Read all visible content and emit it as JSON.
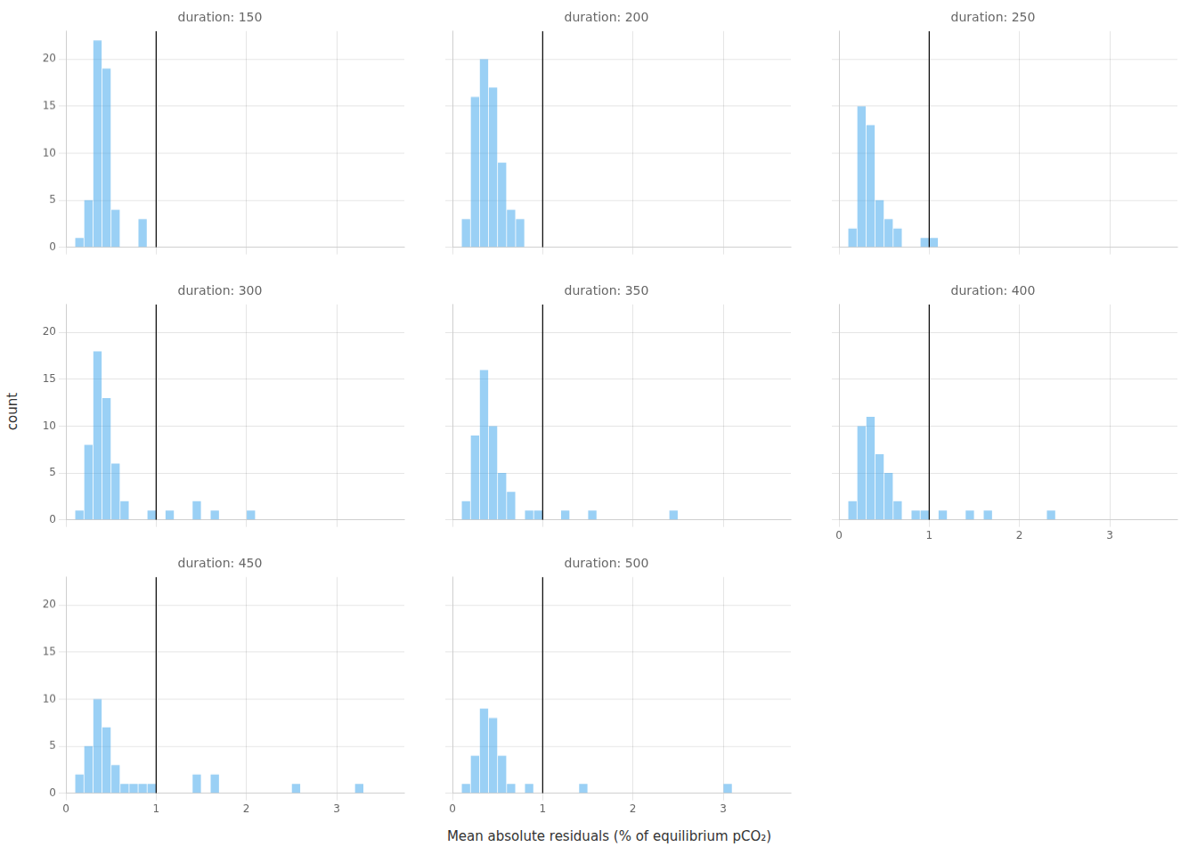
{
  "chart_data": [
    {
      "type": "histogram",
      "title": "duration: 150",
      "bins": [
        0.0,
        0.1,
        0.2,
        0.3,
        0.4,
        0.5,
        0.6,
        0.7,
        0.8,
        0.9,
        1.0,
        1.1,
        1.2,
        1.3,
        1.4,
        1.5,
        1.6,
        1.7,
        1.8,
        1.9,
        2.0,
        2.1,
        2.2,
        2.3,
        2.4,
        2.5,
        2.6,
        2.7,
        2.8,
        2.9,
        3.0,
        3.1,
        3.2,
        3.3,
        3.4,
        3.5,
        3.6
      ],
      "values": [
        0,
        1,
        5,
        22,
        19,
        4,
        0,
        0,
        3,
        0,
        0,
        0,
        0,
        0,
        0,
        0,
        0,
        0,
        0,
        0,
        0,
        0,
        0,
        0,
        0,
        0,
        0,
        0,
        0,
        0,
        0,
        0,
        0,
        0,
        0,
        0
      ],
      "threshold": 1.0,
      "xlim": [
        0,
        3.75
      ],
      "ylim": [
        0,
        23
      ],
      "xticks": [
        0,
        1,
        2,
        3
      ],
      "yticks": [
        0,
        5,
        10,
        15,
        20
      ],
      "grid": true,
      "tick_labels": "y"
    },
    {
      "type": "histogram",
      "title": "duration: 200",
      "bins": [
        0.0,
        0.1,
        0.2,
        0.3,
        0.4,
        0.5,
        0.6,
        0.7,
        0.8,
        0.9,
        1.0,
        1.1,
        1.2,
        1.3,
        1.4,
        1.5,
        1.6,
        1.7,
        1.8,
        1.9,
        2.0,
        2.1,
        2.2,
        2.3,
        2.4,
        2.5,
        2.6,
        2.7,
        2.8,
        2.9,
        3.0,
        3.1,
        3.2,
        3.3,
        3.4,
        3.5,
        3.6
      ],
      "values": [
        0,
        3,
        16,
        20,
        17,
        9,
        4,
        3,
        0,
        0,
        0,
        0,
        0,
        0,
        0,
        0,
        0,
        0,
        0,
        0,
        0,
        0,
        0,
        0,
        0,
        0,
        0,
        0,
        0,
        0,
        0,
        0,
        0,
        0,
        0,
        0
      ],
      "threshold": 1.0,
      "xlim": [
        0,
        3.75
      ],
      "ylim": [
        0,
        23
      ],
      "xticks": [
        0,
        1,
        2,
        3
      ],
      "yticks": [
        0,
        5,
        10,
        15,
        20
      ],
      "grid": true,
      "tick_labels": false
    },
    {
      "type": "histogram",
      "title": "duration: 250",
      "bins": [
        0.0,
        0.1,
        0.2,
        0.3,
        0.4,
        0.5,
        0.6,
        0.7,
        0.8,
        0.9,
        1.0,
        1.1,
        1.2,
        1.3,
        1.4,
        1.5,
        1.6,
        1.7,
        1.8,
        1.9,
        2.0,
        2.1,
        2.2,
        2.3,
        2.4,
        2.5,
        2.6,
        2.7,
        2.8,
        2.9,
        3.0,
        3.1,
        3.2,
        3.3,
        3.4,
        3.5,
        3.6
      ],
      "values": [
        0,
        2,
        15,
        13,
        5,
        3,
        2,
        0,
        0,
        1,
        1,
        0,
        0,
        0,
        0,
        0,
        0,
        0,
        0,
        0,
        0,
        0,
        0,
        0,
        0,
        0,
        0,
        0,
        0,
        0,
        0,
        0,
        0,
        0,
        0,
        0
      ],
      "threshold": 1.0,
      "xlim": [
        0,
        3.75
      ],
      "ylim": [
        0,
        23
      ],
      "xticks": [
        0,
        1,
        2,
        3
      ],
      "yticks": [
        0,
        5,
        10,
        15,
        20
      ],
      "grid": true,
      "tick_labels": false
    },
    {
      "type": "histogram",
      "title": "duration: 300",
      "ylabel": "count",
      "bins": [
        0.0,
        0.1,
        0.2,
        0.3,
        0.4,
        0.5,
        0.6,
        0.7,
        0.8,
        0.9,
        1.0,
        1.1,
        1.2,
        1.3,
        1.4,
        1.5,
        1.6,
        1.7,
        1.8,
        1.9,
        2.0,
        2.1,
        2.2,
        2.3,
        2.4,
        2.5,
        2.6,
        2.7,
        2.8,
        2.9,
        3.0,
        3.1,
        3.2,
        3.3,
        3.4,
        3.5,
        3.6
      ],
      "values": [
        0,
        1,
        8,
        18,
        13,
        6,
        2,
        0,
        0,
        1,
        0,
        1,
        0,
        0,
        2,
        0,
        1,
        0,
        0,
        0,
        1,
        0,
        0,
        0,
        0,
        0,
        0,
        0,
        0,
        0,
        0,
        0,
        0,
        0,
        0,
        0
      ],
      "threshold": 1.0,
      "xlim": [
        0,
        3.75
      ],
      "ylim": [
        0,
        23
      ],
      "xticks": [
        0,
        1,
        2,
        3
      ],
      "yticks": [
        0,
        5,
        10,
        15,
        20
      ],
      "grid": true,
      "tick_labels": "y"
    },
    {
      "type": "histogram",
      "title": "duration: 350",
      "bins": [
        0.0,
        0.1,
        0.2,
        0.3,
        0.4,
        0.5,
        0.6,
        0.7,
        0.8,
        0.9,
        1.0,
        1.1,
        1.2,
        1.3,
        1.4,
        1.5,
        1.6,
        1.7,
        1.8,
        1.9,
        2.0,
        2.1,
        2.2,
        2.3,
        2.4,
        2.5,
        2.6,
        2.7,
        2.8,
        2.9,
        3.0,
        3.1,
        3.2,
        3.3,
        3.4,
        3.5,
        3.6
      ],
      "values": [
        0,
        2,
        9,
        16,
        10,
        5,
        3,
        0,
        1,
        1,
        0,
        0,
        1,
        0,
        0,
        1,
        0,
        0,
        0,
        0,
        0,
        0,
        0,
        0,
        1,
        0,
        0,
        0,
        0,
        0,
        0,
        0,
        0,
        0,
        0,
        0
      ],
      "threshold": 1.0,
      "xlim": [
        0,
        3.75
      ],
      "ylim": [
        0,
        23
      ],
      "xticks": [
        0,
        1,
        2,
        3
      ],
      "yticks": [
        0,
        5,
        10,
        15,
        20
      ],
      "grid": true,
      "tick_labels": false
    },
    {
      "type": "histogram",
      "title": "duration: 400",
      "bins": [
        0.0,
        0.1,
        0.2,
        0.3,
        0.4,
        0.5,
        0.6,
        0.7,
        0.8,
        0.9,
        1.0,
        1.1,
        1.2,
        1.3,
        1.4,
        1.5,
        1.6,
        1.7,
        1.8,
        1.9,
        2.0,
        2.1,
        2.2,
        2.3,
        2.4,
        2.5,
        2.6,
        2.7,
        2.8,
        2.9,
        3.0,
        3.1,
        3.2,
        3.3,
        3.4,
        3.5,
        3.6
      ],
      "values": [
        0,
        2,
        10,
        11,
        7,
        5,
        2,
        0,
        1,
        1,
        0,
        1,
        0,
        0,
        1,
        0,
        1,
        0,
        0,
        0,
        0,
        0,
        0,
        1,
        0,
        0,
        0,
        0,
        0,
        0,
        0,
        0,
        0,
        0,
        0,
        0
      ],
      "threshold": 1.0,
      "xlim": [
        0,
        3.75
      ],
      "ylim": [
        0,
        23
      ],
      "xticks": [
        0,
        1,
        2,
        3
      ],
      "yticks": [
        0,
        5,
        10,
        15,
        20
      ],
      "grid": true,
      "tick_labels": "x"
    },
    {
      "type": "histogram",
      "title": "duration: 450",
      "bins": [
        0.0,
        0.1,
        0.2,
        0.3,
        0.4,
        0.5,
        0.6,
        0.7,
        0.8,
        0.9,
        1.0,
        1.1,
        1.2,
        1.3,
        1.4,
        1.5,
        1.6,
        1.7,
        1.8,
        1.9,
        2.0,
        2.1,
        2.2,
        2.3,
        2.4,
        2.5,
        2.6,
        2.7,
        2.8,
        2.9,
        3.0,
        3.1,
        3.2,
        3.3,
        3.4,
        3.5,
        3.6
      ],
      "values": [
        0,
        2,
        5,
        10,
        7,
        3,
        1,
        1,
        1,
        1,
        0,
        0,
        0,
        0,
        2,
        0,
        2,
        0,
        0,
        0,
        0,
        0,
        0,
        0,
        0,
        1,
        0,
        0,
        0,
        0,
        0,
        0,
        1,
        0,
        0,
        0
      ],
      "threshold": 1.0,
      "xlim": [
        0,
        3.75
      ],
      "ylim": [
        0,
        23
      ],
      "xticks": [
        0,
        1,
        2,
        3
      ],
      "yticks": [
        0,
        5,
        10,
        15,
        20
      ],
      "grid": true
    },
    {
      "type": "histogram",
      "title": "duration: 500",
      "xlabel": "Mean absolute residuals (% of equilibrium pCO₂)",
      "bins": [
        0.0,
        0.1,
        0.2,
        0.3,
        0.4,
        0.5,
        0.6,
        0.7,
        0.8,
        0.9,
        1.0,
        1.1,
        1.2,
        1.3,
        1.4,
        1.5,
        1.6,
        1.7,
        1.8,
        1.9,
        2.0,
        2.1,
        2.2,
        2.3,
        2.4,
        2.5,
        2.6,
        2.7,
        2.8,
        2.9,
        3.0,
        3.1,
        3.2,
        3.3,
        3.4,
        3.5,
        3.6
      ],
      "values": [
        0,
        1,
        4,
        9,
        8,
        4,
        1,
        0,
        1,
        0,
        0,
        0,
        0,
        0,
        1,
        0,
        0,
        0,
        0,
        0,
        0,
        0,
        0,
        0,
        0,
        0,
        0,
        0,
        0,
        0,
        1,
        0,
        0,
        0,
        0,
        0
      ],
      "threshold": 1.0,
      "xlim": [
        0,
        3.75
      ],
      "ylim": [
        0,
        23
      ],
      "xticks": [
        0,
        1,
        2,
        3
      ],
      "yticks": [
        0,
        5,
        10,
        15,
        20
      ],
      "grid": true,
      "tick_labels": "x"
    }
  ]
}
